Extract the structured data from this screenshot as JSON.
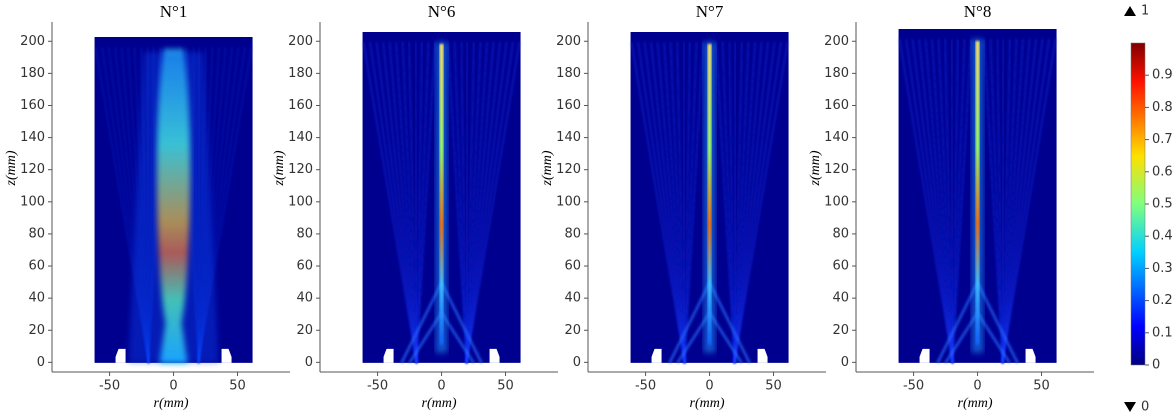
{
  "chart_data": [
    {
      "type": "heatmap",
      "title": "N°1",
      "xlabel": "r(mm)",
      "ylabel": "z(mm)",
      "xlim": [
        -95,
        91
      ],
      "ylim": [
        -6,
        212
      ],
      "xticks": [
        -50,
        0,
        50
      ],
      "yticks": [
        0,
        20,
        40,
        60,
        80,
        100,
        120,
        140,
        160,
        180,
        200
      ]
    },
    {
      "type": "heatmap",
      "title": "N°6",
      "xlabel": "r(mm)",
      "ylabel": "z(mm)",
      "xlim": [
        -95,
        91
      ],
      "ylim": [
        -6,
        212
      ],
      "xticks": [
        -50,
        0,
        50
      ],
      "yticks": [
        0,
        20,
        40,
        60,
        80,
        100,
        120,
        140,
        160,
        180,
        200
      ]
    },
    {
      "type": "heatmap",
      "title": "N°7",
      "xlabel": "r(mm)",
      "ylabel": "z(mm)",
      "xlim": [
        -95,
        91
      ],
      "ylim": [
        -6,
        212
      ],
      "xticks": [
        -50,
        0,
        50
      ],
      "yticks": [
        0,
        20,
        40,
        60,
        80,
        100,
        120,
        140,
        160,
        180,
        200
      ]
    },
    {
      "type": "heatmap",
      "title": "N°8",
      "xlabel": "r(mm)",
      "ylabel": "z(mm)",
      "xlim": [
        -95,
        91
      ],
      "ylim": [
        -6,
        212
      ],
      "xticks": [
        -50,
        0,
        50
      ],
      "yticks": [
        0,
        20,
        40,
        60,
        80,
        100,
        120,
        140,
        160,
        180,
        200
      ]
    }
  ],
  "colorbar": {
    "max_label": "1",
    "min_label": "0",
    "lim": [
      0,
      1
    ],
    "ticks": [
      0,
      0.1,
      0.2,
      0.3,
      0.4,
      0.5,
      0.6,
      0.7,
      0.8,
      0.9
    ]
  }
}
